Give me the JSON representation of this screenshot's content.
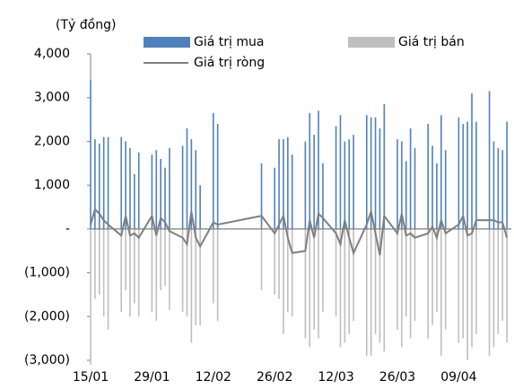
{
  "chart_data": {
    "type": "bar-line",
    "y_label": "(Tỷ đồng)",
    "x": [
      "15/01",
      "16/01",
      "17/01",
      "18/01",
      "19/01",
      "22/01",
      "23/01",
      "24/01",
      "25/01",
      "26/01",
      "29/01",
      "30/01",
      "31/01",
      "01/02",
      "02/02",
      "05/02",
      "06/02",
      "07/02",
      "08/02",
      "09/02",
      "12/02",
      "13/02",
      "23/02",
      "26/02",
      "27/02",
      "28/02",
      "01/03",
      "02/03",
      "05/03",
      "06/03",
      "07/03",
      "08/03",
      "09/03",
      "12/03",
      "13/03",
      "14/03",
      "15/03",
      "16/03",
      "19/03",
      "20/03",
      "21/03",
      "22/03",
      "23/03",
      "26/03",
      "27/03",
      "28/03",
      "29/03",
      "30/03",
      "02/04",
      "03/04",
      "04/04",
      "05/04",
      "06/04",
      "09/04",
      "10/04",
      "11/04",
      "12/04",
      "13/04",
      "16/04",
      "17/04",
      "18/04",
      "19/04",
      "20/04"
    ],
    "xlim": [
      "15/01",
      "21/04"
    ],
    "xticks": [
      "15/01",
      "29/01",
      "12/02",
      "26/02",
      "12/03",
      "26/03",
      "09/04"
    ],
    "ylim": [
      -3000,
      4000
    ],
    "yticks": [
      {
        "value": -3000,
        "label": "(3,000)"
      },
      {
        "value": -2000,
        "label": "(2,000)"
      },
      {
        "value": -1000,
        "label": "(1,000)"
      },
      {
        "value": 0,
        "label": "-"
      },
      {
        "value": 1000,
        "label": "1,000"
      },
      {
        "value": 2000,
        "label": "2,000"
      },
      {
        "value": 3000,
        "label": "3,000"
      },
      {
        "value": 4000,
        "label": "4,000"
      }
    ],
    "series": [
      {
        "name": "Giá trị mua",
        "kind": "bar",
        "color": "#4f81bd",
        "values": [
          3400,
          2050,
          1950,
          2100,
          2100,
          2100,
          2000,
          1850,
          1250,
          1750,
          1700,
          1800,
          1600,
          1400,
          1850,
          1900,
          2300,
          2050,
          1800,
          1000,
          2650,
          2400,
          1500,
          1400,
          2050,
          2050,
          2100,
          1700,
          2000,
          2650,
          2150,
          2700,
          1500,
          2350,
          2600,
          2000,
          2050,
          2150,
          2600,
          2550,
          2550,
          2300,
          2850,
          2050,
          2000,
          1550,
          2300,
          1850,
          2400,
          1900,
          1500,
          2600,
          1800,
          2550,
          2400,
          2450,
          3100,
          2450,
          3150,
          2000,
          1850,
          1800,
          2450
        ]
      },
      {
        "name": "Giá trị bán",
        "kind": "bar",
        "color": "#bfbfbf",
        "values": [
          -3100,
          -1600,
          -1500,
          -2000,
          -2300,
          -1900,
          -1400,
          -2000,
          -1700,
          -2000,
          -1900,
          -2100,
          -1400,
          -1300,
          -1850,
          -1900,
          -2000,
          -2600,
          -2200,
          -2200,
          -1700,
          -2100,
          -1400,
          -1500,
          -1600,
          -2400,
          -1900,
          -2000,
          -2500,
          -2700,
          -2300,
          -2500,
          -1900,
          -2000,
          -2700,
          -2600,
          -2400,
          -2100,
          -2900,
          -2900,
          -2400,
          -2600,
          -2800,
          -2300,
          -2700,
          -2000,
          -2500,
          -2100,
          -2500,
          -2200,
          -1900,
          -2900,
          -2300,
          -2600,
          -2500,
          -3000,
          -2700,
          -2400,
          -2900,
          -2700,
          -2400,
          -2100,
          -2600
        ]
      },
      {
        "name": "Giá trị ròng",
        "kind": "line",
        "color": "#7f7f7f",
        "values": [
          100,
          450,
          350,
          200,
          100,
          -150,
          300,
          -150,
          -100,
          -200,
          300,
          -150,
          250,
          150,
          -50,
          -200,
          -350,
          400,
          -200,
          -400,
          150,
          100,
          300,
          -100,
          100,
          300,
          -200,
          -550,
          -500,
          200,
          -200,
          350,
          250,
          -100,
          -350,
          200,
          -200,
          -550,
          100,
          400,
          -100,
          -600,
          300,
          -100,
          350,
          -150,
          -100,
          -200,
          -100,
          50,
          -200,
          200,
          -100,
          100,
          300,
          -150,
          -100,
          200,
          200,
          200,
          150,
          150,
          -200
        ]
      }
    ]
  }
}
